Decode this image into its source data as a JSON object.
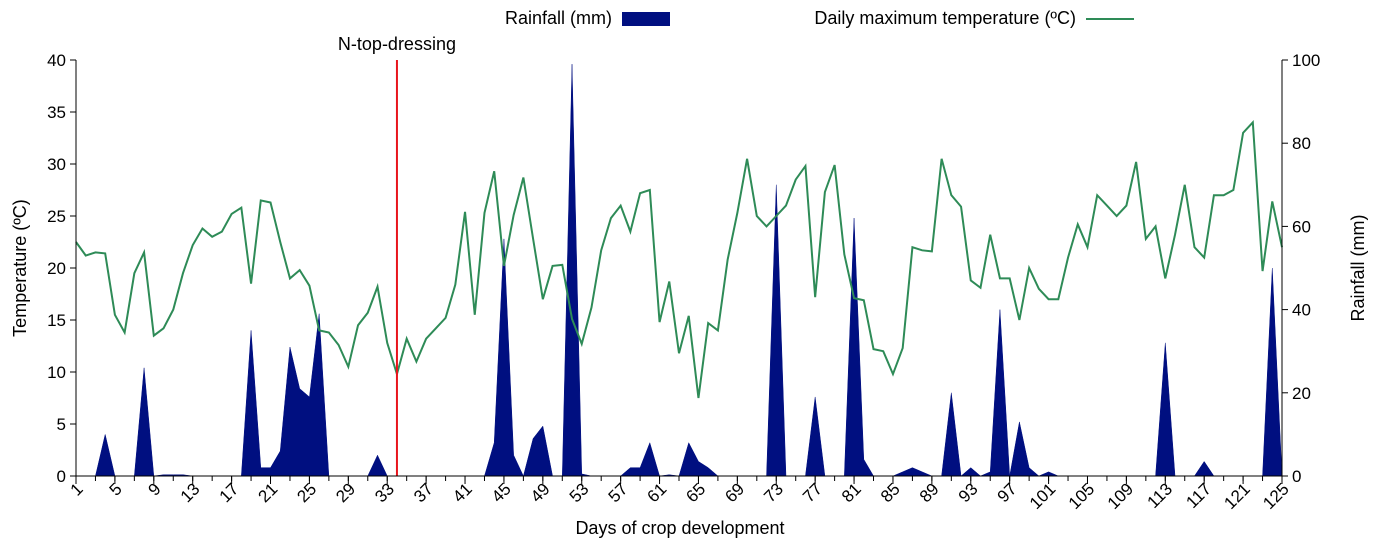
{
  "chart_data": {
    "type": "area+line",
    "xlabel": "Days of crop development",
    "ylabel_left": "Temperature (ºC)",
    "ylabel_right": "Rainfall (mm)",
    "xlim": [
      1,
      125
    ],
    "xticks": [
      1,
      5,
      9,
      13,
      17,
      21,
      25,
      29,
      33,
      37,
      41,
      45,
      49,
      53,
      57,
      61,
      65,
      69,
      73,
      77,
      81,
      85,
      89,
      93,
      97,
      101,
      105,
      109,
      113,
      117,
      121,
      125
    ],
    "ylim_left": [
      0,
      40
    ],
    "yticks_left": [
      0,
      5,
      10,
      15,
      20,
      25,
      30,
      35,
      40
    ],
    "ylim_right": [
      0,
      100
    ],
    "yticks_right": [
      0,
      20,
      40,
      60,
      80,
      100
    ],
    "legend_position": "top",
    "grid": false,
    "annotation": {
      "label": "N-top-dressing",
      "x": 34,
      "color": "#e8141c"
    },
    "series": [
      {
        "name": "Rainfall (mm)",
        "axis": "right",
        "style": "area",
        "color": "#000f80",
        "x": [
          1,
          2,
          3,
          4,
          5,
          6,
          7,
          8,
          9,
          10,
          11,
          12,
          13,
          14,
          15,
          16,
          17,
          18,
          19,
          20,
          21,
          22,
          23,
          24,
          25,
          26,
          27,
          28,
          29,
          30,
          31,
          32,
          33,
          34,
          35,
          36,
          37,
          38,
          39,
          40,
          41,
          42,
          43,
          44,
          45,
          46,
          47,
          48,
          49,
          50,
          51,
          52,
          53,
          54,
          55,
          56,
          57,
          58,
          59,
          60,
          61,
          62,
          63,
          64,
          65,
          66,
          67,
          68,
          69,
          70,
          71,
          72,
          73,
          74,
          75,
          76,
          77,
          78,
          79,
          80,
          81,
          82,
          83,
          84,
          85,
          86,
          87,
          88,
          89,
          90,
          91,
          92,
          93,
          94,
          95,
          96,
          97,
          98,
          99,
          100,
          101,
          102,
          103,
          104,
          105,
          106,
          107,
          108,
          109,
          110,
          111,
          112,
          113,
          114,
          115,
          116,
          117,
          118,
          119,
          120,
          121,
          122,
          123,
          124,
          125
        ],
        "values": [
          0,
          0,
          0,
          10,
          0,
          0,
          0,
          26,
          0,
          0.3,
          0.3,
          0.3,
          0,
          0,
          0,
          0,
          0,
          0,
          35,
          2,
          2,
          6,
          31,
          21,
          19,
          39,
          0,
          0,
          0,
          0,
          0,
          5,
          0,
          0,
          0,
          0,
          0,
          0,
          0,
          0,
          0,
          0,
          0,
          8,
          57,
          5,
          0,
          9,
          12,
          0,
          0,
          99,
          0.5,
          0,
          0,
          0,
          0,
          2,
          2,
          8,
          0,
          0.3,
          0,
          8,
          3.5,
          2,
          0,
          0,
          0,
          0,
          0,
          0,
          70,
          0,
          0,
          0,
          19,
          0,
          0,
          0,
          62,
          4,
          0,
          0,
          0,
          1,
          2,
          1,
          0,
          0,
          20,
          0,
          2,
          0,
          1,
          40,
          0,
          13,
          2,
          0,
          1,
          0,
          0,
          0,
          0,
          0,
          0,
          0,
          0,
          0,
          0,
          0,
          32,
          0,
          0,
          0,
          3.5,
          0,
          0,
          0,
          0,
          0,
          0,
          50,
          0
        ]
      },
      {
        "name": "Daily maximum temperature (ºC)",
        "axis": "left",
        "style": "line",
        "color": "#2e8b57",
        "x": [
          1,
          2,
          3,
          4,
          5,
          6,
          7,
          8,
          9,
          10,
          11,
          12,
          13,
          14,
          15,
          16,
          17,
          18,
          19,
          20,
          21,
          22,
          23,
          24,
          25,
          26,
          27,
          28,
          29,
          30,
          31,
          32,
          33,
          34,
          35,
          36,
          37,
          38,
          39,
          40,
          41,
          42,
          43,
          44,
          45,
          46,
          47,
          48,
          49,
          50,
          51,
          52,
          53,
          54,
          55,
          56,
          57,
          58,
          59,
          60,
          61,
          62,
          63,
          64,
          65,
          66,
          67,
          68,
          69,
          70,
          71,
          72,
          73,
          74,
          75,
          76,
          77,
          78,
          79,
          80,
          81,
          82,
          83,
          84,
          85,
          86,
          87,
          88,
          89,
          90,
          91,
          92,
          93,
          94,
          95,
          96,
          97,
          98,
          99,
          100,
          101,
          102,
          103,
          104,
          105,
          106,
          107,
          108,
          109,
          110,
          111,
          112,
          113,
          114,
          115,
          116,
          117,
          118,
          119,
          120,
          121,
          122,
          123,
          124,
          125
        ],
        "values": [
          22.5,
          21.2,
          21.5,
          21.4,
          15.5,
          13.8,
          19.5,
          21.5,
          13.5,
          14.2,
          16,
          19.5,
          22.2,
          23.8,
          23,
          23.5,
          25.2,
          25.8,
          18.5,
          26.5,
          26.3,
          22.5,
          19,
          19.8,
          18.3,
          14,
          13.8,
          12.6,
          10.5,
          14.5,
          15.7,
          18.2,
          12.8,
          9.8,
          13.2,
          11,
          13.2,
          14.2,
          15.2,
          18.4,
          25.4,
          15.5,
          25.3,
          29.3,
          20.2,
          25.1,
          28.7,
          22.8,
          17,
          20.2,
          20.3,
          15.1,
          12.7,
          16.2,
          21.7,
          24.8,
          26,
          23.5,
          27.2,
          27.5,
          14.8,
          18.7,
          11.8,
          15.4,
          7.5,
          14.7,
          14,
          20.8,
          25.3,
          30.5,
          25,
          24,
          25,
          26,
          28.5,
          29.8,
          17.2,
          27.3,
          29.9,
          21.3,
          17.1,
          16.9,
          12.2,
          12,
          9.8,
          12.3,
          22,
          21.7,
          21.6,
          30.5,
          27,
          25.9,
          18.8,
          18.1,
          23.2,
          19,
          19,
          15,
          20,
          18,
          17,
          17,
          21,
          24.2,
          22,
          27,
          26,
          25,
          26,
          30.2,
          22.8,
          24,
          19,
          23.2,
          28,
          22,
          21,
          27,
          27,
          27.5,
          33,
          34,
          19.7,
          26.4,
          22
        ]
      }
    ]
  }
}
